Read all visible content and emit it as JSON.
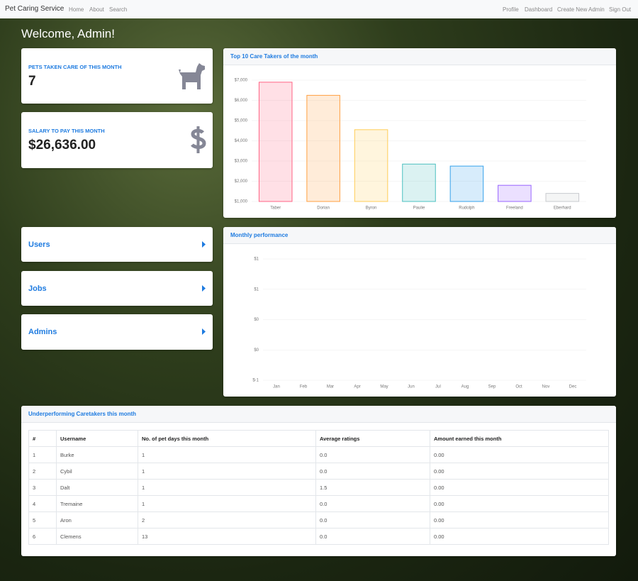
{
  "navbar": {
    "brand": "Pet Caring Service",
    "left_links": [
      "Home",
      "About",
      "Search"
    ],
    "right_links": [
      "Profile",
      "Dashboard",
      "Create New Admin",
      "Sign Out"
    ]
  },
  "welcome": "Welcome, Admin!",
  "stats": [
    {
      "label": "PETS TAKEN CARE OF THIS MONTH",
      "value": "7"
    },
    {
      "label": "SALARY TO PAY THIS MONTH",
      "value": "$26,636.00"
    }
  ],
  "menu": [
    "Users",
    "Jobs",
    "Admins"
  ],
  "chart_data": [
    {
      "type": "bar",
      "title": "Top 10 Care Takers of the month",
      "categories": [
        "Taber",
        "Dorian",
        "Byron",
        "Paulie",
        "Rudolph",
        "Freeland",
        "Eberhard"
      ],
      "values": [
        6900,
        6250,
        4550,
        2850,
        2750,
        1800,
        1400
      ],
      "colors": [
        "#ff6384",
        "#ff9f40",
        "#ffcd56",
        "#4bc0c0",
        "#36a2eb",
        "#9966ff",
        "#c9cbcf"
      ],
      "ylim": [
        1000,
        7000
      ],
      "yticks": [
        {
          "value": 1000,
          "label": "$1,000"
        },
        {
          "value": 2000,
          "label": "$2,000"
        },
        {
          "value": 3000,
          "label": "$3,000"
        },
        {
          "value": 4000,
          "label": "$4,000"
        },
        {
          "value": 5000,
          "label": "$5,000"
        },
        {
          "value": 6000,
          "label": "$6,000"
        },
        {
          "value": 7000,
          "label": "$7,000"
        }
      ],
      "grid": true
    },
    {
      "type": "line",
      "title": "Monthly performance",
      "categories": [
        "Jan",
        "Feb",
        "Mar",
        "Apr",
        "May",
        "Jun",
        "Jul",
        "Aug",
        "Sep",
        "Oct",
        "Nov",
        "Dec"
      ],
      "ylim": [
        -1,
        1
      ],
      "yticks": [
        {
          "value": -1,
          "label": "$-1"
        },
        {
          "value": -0.5,
          "label": "$0"
        },
        {
          "value": 0,
          "label": "$0"
        },
        {
          "value": 0.5,
          "label": "$1"
        },
        {
          "value": 1,
          "label": "$1"
        }
      ],
      "grid": true
    }
  ],
  "table": {
    "title": "Underperforming Caretakers this month",
    "columns": [
      "#",
      "Username",
      "No. of pet days this month",
      "Average ratings",
      "Amount earned this month"
    ],
    "rows": [
      [
        "1",
        "Burke",
        "1",
        "0.0",
        "0.00"
      ],
      [
        "2",
        "Cybil",
        "1",
        "0.0",
        "0.00"
      ],
      [
        "3",
        "Dalt",
        "1",
        "1.5",
        "0.00"
      ],
      [
        "4",
        "Tremaine",
        "1",
        "0.0",
        "0.00"
      ],
      [
        "5",
        "Aron",
        "2",
        "0.0",
        "0.00"
      ],
      [
        "6",
        "Clemens",
        "13",
        "0.0",
        "0.00"
      ]
    ]
  }
}
